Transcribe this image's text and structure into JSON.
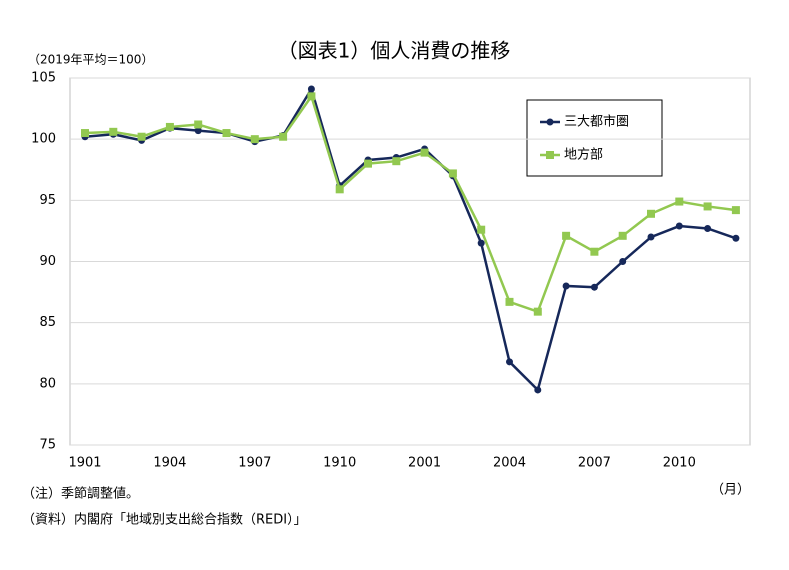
{
  "chart_data": {
    "type": "line",
    "title": "（図表1）個人消費の推移",
    "y_label": "（2019年平均＝100）",
    "x_label": "（月）",
    "notes": [
      "（注）季節調整値。",
      "（資料）内閣府「地域別支出総合指数（REDI）」"
    ],
    "categories": [
      "1901",
      null,
      null,
      "1904",
      null,
      null,
      "1907",
      null,
      null,
      "1910",
      null,
      null,
      "2001",
      null,
      null,
      "2004",
      null,
      null,
      "2007",
      null,
      null,
      "2010",
      null,
      null
    ],
    "series": [
      {
        "name": "三大都市圏",
        "color": "#16285a",
        "marker": "circle",
        "values": [
          100.2,
          100.4,
          99.9,
          100.9,
          100.7,
          100.5,
          99.8,
          100.3,
          104.1,
          96.2,
          98.3,
          98.5,
          99.2,
          97.0,
          91.5,
          81.8,
          79.5,
          88.0,
          87.9,
          90.0,
          92.0,
          92.9,
          92.7,
          91.9
        ]
      },
      {
        "name": "地方部",
        "color": "#92c850",
        "marker": "square",
        "values": [
          100.5,
          100.6,
          100.2,
          101.0,
          101.2,
          100.5,
          100.0,
          100.2,
          103.5,
          95.9,
          98.0,
          98.2,
          98.9,
          97.2,
          92.6,
          86.7,
          85.9,
          92.1,
          90.8,
          92.1,
          93.9,
          94.9,
          94.5,
          94.2
        ]
      }
    ],
    "ylim": [
      75,
      105
    ],
    "yticks": [
      75,
      80,
      85,
      90,
      95,
      100,
      105
    ],
    "grid": true,
    "legend": "upper right"
  }
}
